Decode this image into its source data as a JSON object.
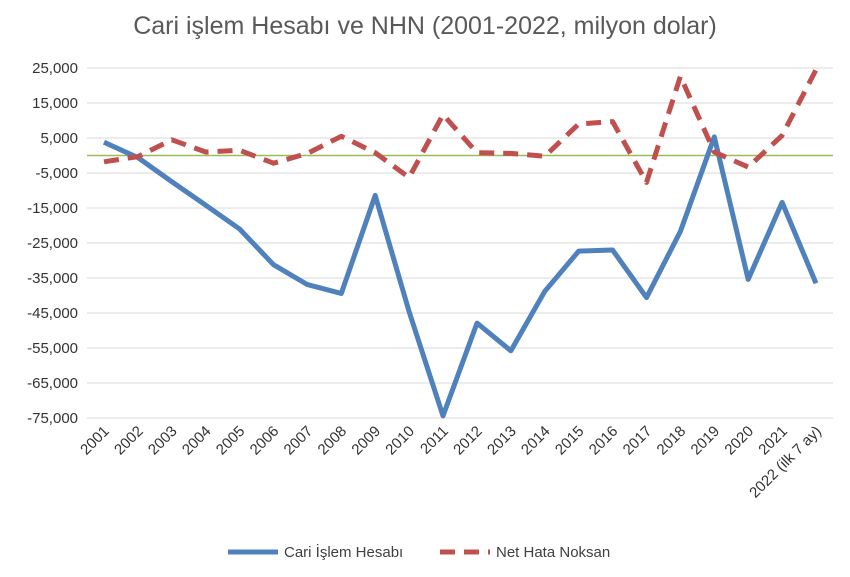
{
  "chart_data": {
    "type": "line",
    "title": "Cari işlem Hesabı ve NHN (2001-2022, milyon dolar)",
    "xlabel": "",
    "ylabel": "",
    "categories": [
      "2001",
      "2002",
      "2003",
      "2004",
      "2005",
      "2006",
      "2007",
      "2008",
      "2009",
      "2010",
      "2011",
      "2012",
      "2013",
      "2014",
      "2015",
      "2016",
      "2017",
      "2018",
      "2019",
      "2020",
      "2021",
      "2022 (ilk 7 ay)"
    ],
    "ylim": [
      -75000,
      25000
    ],
    "yticks": [
      25000,
      15000,
      5000,
      -5000,
      -15000,
      -25000,
      -35000,
      -45000,
      -55000,
      -65000,
      -75000
    ],
    "ytick_labels": [
      "25,000",
      "15,000",
      "5,000",
      "-5,000",
      "-15,000",
      "-25,000",
      "-35,000",
      "-45,000",
      "-55,000",
      "-65,000",
      "-75,000"
    ],
    "grid": true,
    "legend_position": "bottom",
    "series": [
      {
        "name": "Cari İşlem Hesabı",
        "color": "#4f81bd",
        "style": "solid",
        "values": [
          3800,
          -600,
          -7500,
          -14200,
          -21000,
          -31200,
          -36900,
          -39400,
          -11400,
          -44600,
          -74400,
          -47900,
          -55800,
          -38800,
          -27300,
          -27000,
          -40600,
          -21700,
          5300,
          -35400,
          -13400,
          -36500
        ]
      },
      {
        "name": "Net Hata Noksan",
        "color": "#c0504d",
        "style": "dashed",
        "values": [
          -1800,
          -300,
          4500,
          1000,
          1500,
          -2200,
          600,
          5500,
          800,
          -6300,
          11700,
          800,
          600,
          -200,
          9000,
          9700,
          -7700,
          22600,
          1000,
          -3300,
          5700,
          24500
        ]
      }
    ],
    "zero_line_color": "#9bbb59"
  }
}
